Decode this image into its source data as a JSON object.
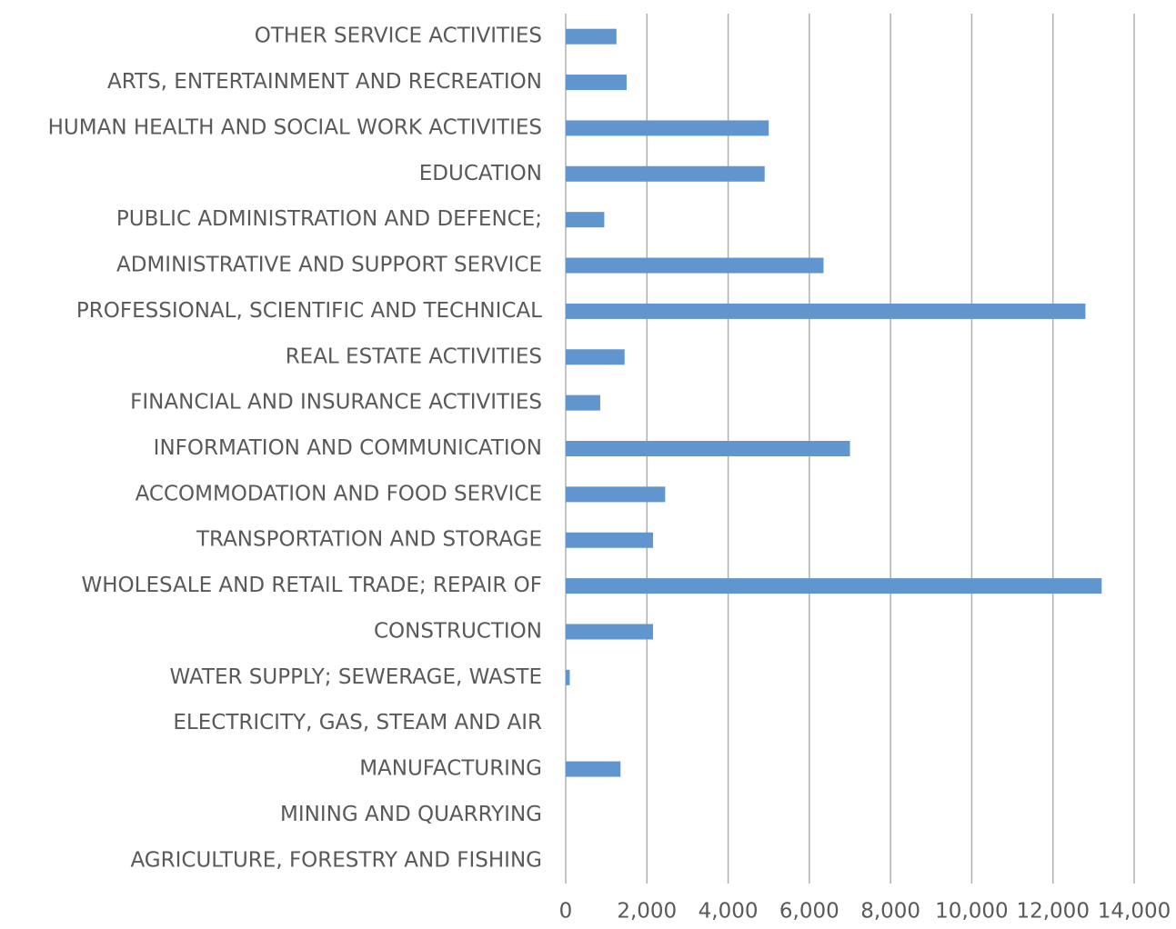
{
  "chart_data": {
    "type": "barh",
    "categories": [
      "OTHER SERVICE ACTIVITIES",
      "ARTS, ENTERTAINMENT AND RECREATION",
      "HUMAN HEALTH AND SOCIAL WORK ACTIVITIES",
      "EDUCATION",
      "PUBLIC ADMINISTRATION AND DEFENCE;",
      "ADMINISTRATIVE AND SUPPORT SERVICE",
      "PROFESSIONAL, SCIENTIFIC AND TECHNICAL",
      "REAL ESTATE ACTIVITIES",
      "FINANCIAL AND INSURANCE ACTIVITIES",
      "INFORMATION AND COMMUNICATION",
      "ACCOMMODATION AND FOOD SERVICE",
      "TRANSPORTATION AND STORAGE",
      "WHOLESALE AND RETAIL TRADE; REPAIR OF",
      "CONSTRUCTION",
      "WATER SUPPLY; SEWERAGE, WASTE",
      "ELECTRICITY, GAS, STEAM AND AIR",
      "MANUFACTURING",
      "MINING AND QUARRYING",
      "AGRICULTURE, FORESTRY AND FISHING"
    ],
    "values": [
      1250,
      1500,
      5000,
      4900,
      950,
      6350,
      12800,
      1450,
      850,
      7000,
      2450,
      2150,
      13200,
      2150,
      100,
      0,
      1350,
      0,
      0
    ],
    "color": "#6096cd",
    "xlim": [
      0,
      14000
    ],
    "xticks": [
      0,
      {
        "value": 2000,
        "label": "2,000"
      },
      {
        "value": 4000,
        "label": "4,000"
      },
      {
        "value": 6000,
        "label": "6,000"
      },
      {
        "value": 8000,
        "label": "8,000"
      },
      {
        "value": 10000,
        "label": "10,000"
      },
      {
        "value": 12000,
        "label": "12,000"
      },
      {
        "value": 14000,
        "label": "14,000"
      }
    ],
    "grid": true
  }
}
